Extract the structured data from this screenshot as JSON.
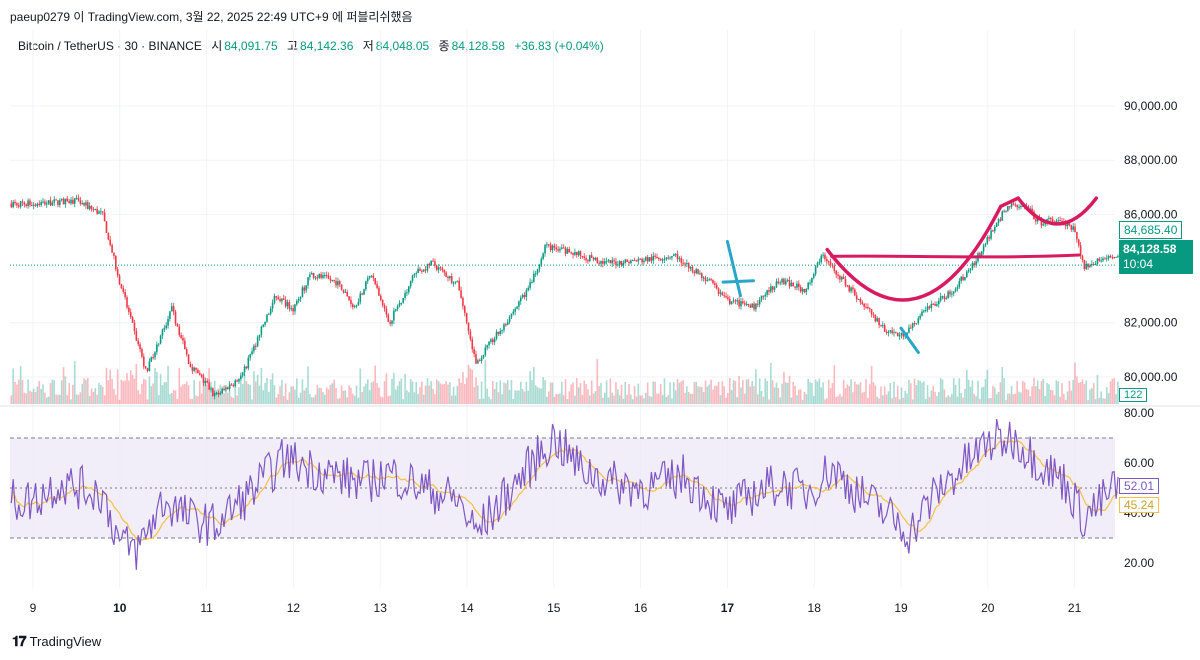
{
  "header": {
    "meta": "paeup0279 이 TradingView.com, 3월 22, 2025 22:49 UTC+9 에 퍼블리쉬했음",
    "symbol": "Bitcoin / TetherUS · 30 · BINANCE",
    "open_label": "시",
    "open": "84,091.75",
    "high_label": "고",
    "high": "84,142.36",
    "low_label": "저",
    "low": "84,048.05",
    "close_label": "종",
    "close": "84,128.58",
    "change": "+36.83 (+0.04%)"
  },
  "price_axis": {
    "ticks": [
      {
        "value": 90000,
        "label": "90,000.00"
      },
      {
        "value": 88000,
        "label": "88,000.00"
      },
      {
        "value": 86000,
        "label": "86,000.00"
      },
      {
        "value": 82000,
        "label": "82,000.00"
      },
      {
        "value": 80000,
        "label": "80,000.00"
      }
    ],
    "range": [
      79000,
      91700
    ],
    "last_price_label": "84,128.58",
    "countdown": "10:04",
    "prev_level_label": "84,685.40",
    "volume_label": "122"
  },
  "rsi_axis": {
    "ticks": [
      {
        "value": 80,
        "label": "80.00"
      },
      {
        "value": 60,
        "label": "60.00"
      },
      {
        "value": 40,
        "label": "40.00"
      },
      {
        "value": 20,
        "label": "20.00"
      }
    ],
    "range": [
      10,
      82
    ],
    "upper": 70,
    "lower": 30,
    "mid": 50,
    "rsi_label": "52.01",
    "ma_label": "45.24"
  },
  "time_axis": {
    "labels": [
      "9",
      "10",
      "11",
      "12",
      "13",
      "14",
      "15",
      "16",
      "17",
      "18",
      "19",
      "20",
      "21"
    ],
    "bold": [
      "10",
      "17"
    ]
  },
  "colors": {
    "up": "#089981",
    "down": "#f23645",
    "rsi": "#7e57c2",
    "rsi_ma": "#f5c04a",
    "band": "#ede7f6",
    "annot_red": "#d81b60",
    "annot_blue": "#26a6c9"
  },
  "chart_data": {
    "type": "candlestick",
    "days": [
      "9",
      "10",
      "11",
      "12",
      "13",
      "14",
      "15",
      "16",
      "17",
      "18",
      "19",
      "20",
      "21"
    ],
    "price_anchors": [
      [
        9.0,
        86400
      ],
      [
        9.5,
        86500
      ],
      [
        9.8,
        86000
      ],
      [
        10.0,
        83500
      ],
      [
        10.3,
        80200
      ],
      [
        10.6,
        82500
      ],
      [
        10.8,
        80500
      ],
      [
        11.1,
        79300
      ],
      [
        11.4,
        80000
      ],
      [
        11.8,
        83000
      ],
      [
        12.0,
        82500
      ],
      [
        12.2,
        83800
      ],
      [
        12.5,
        83500
      ],
      [
        12.7,
        82600
      ],
      [
        12.9,
        83800
      ],
      [
        13.1,
        82000
      ],
      [
        13.4,
        83800
      ],
      [
        13.6,
        84200
      ],
      [
        13.9,
        83400
      ],
      [
        14.1,
        80500
      ],
      [
        14.4,
        81800
      ],
      [
        14.7,
        83200
      ],
      [
        14.9,
        84800
      ],
      [
        15.2,
        84600
      ],
      [
        15.6,
        84200
      ],
      [
        16.0,
        84300
      ],
      [
        16.4,
        84500
      ],
      [
        16.8,
        83500
      ],
      [
        17.0,
        82800
      ],
      [
        17.3,
        82600
      ],
      [
        17.6,
        83600
      ],
      [
        17.9,
        83200
      ],
      [
        18.1,
        84500
      ],
      [
        18.4,
        83300
      ],
      [
        18.8,
        81800
      ],
      [
        19.0,
        81500
      ],
      [
        19.3,
        82500
      ],
      [
        19.6,
        83200
      ],
      [
        19.9,
        84500
      ],
      [
        20.2,
        86200
      ],
      [
        20.4,
        86400
      ],
      [
        20.6,
        85700
      ],
      [
        20.8,
        85800
      ],
      [
        21.0,
        85400
      ],
      [
        21.1,
        84100
      ],
      [
        21.4,
        84400
      ],
      [
        21.5,
        84500
      ]
    ],
    "rsi_anchors": [
      [
        9.0,
        45
      ],
      [
        9.3,
        52
      ],
      [
        9.8,
        48
      ],
      [
        10.0,
        28
      ],
      [
        10.2,
        25
      ],
      [
        10.5,
        45
      ],
      [
        10.8,
        38
      ],
      [
        11.1,
        35
      ],
      [
        11.5,
        48
      ],
      [
        11.9,
        62
      ],
      [
        12.2,
        58
      ],
      [
        12.5,
        55
      ],
      [
        12.8,
        52
      ],
      [
        13.1,
        56
      ],
      [
        13.5,
        50
      ],
      [
        13.9,
        45
      ],
      [
        14.1,
        32
      ],
      [
        14.4,
        45
      ],
      [
        14.8,
        62
      ],
      [
        15.0,
        70
      ],
      [
        15.3,
        58
      ],
      [
        15.7,
        52
      ],
      [
        16.1,
        50
      ],
      [
        16.5,
        55
      ],
      [
        16.8,
        46
      ],
      [
        17.0,
        40
      ],
      [
        17.3,
        48
      ],
      [
        17.6,
        52
      ],
      [
        17.9,
        48
      ],
      [
        18.2,
        58
      ],
      [
        18.5,
        48
      ],
      [
        18.9,
        38
      ],
      [
        19.1,
        32
      ],
      [
        19.4,
        48
      ],
      [
        19.7,
        58
      ],
      [
        20.0,
        68
      ],
      [
        20.3,
        70
      ],
      [
        20.6,
        60
      ],
      [
        20.9,
        52
      ],
      [
        21.1,
        38
      ],
      [
        21.3,
        44
      ],
      [
        21.5,
        52
      ]
    ]
  },
  "branding": {
    "name": "TradingView"
  }
}
